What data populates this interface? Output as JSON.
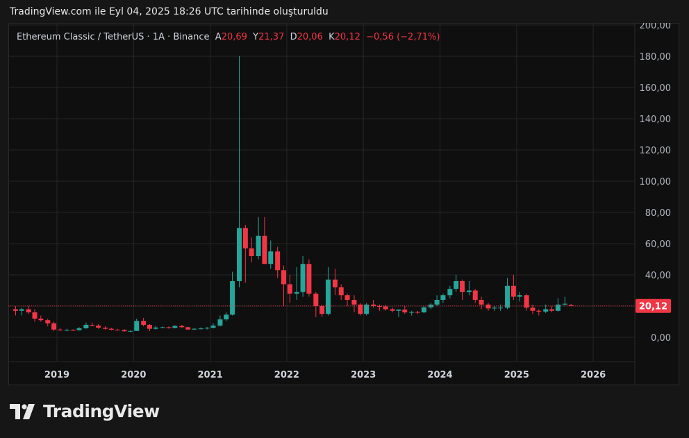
{
  "caption": "TradingView.com ile Eyl 04, 2025 18:26 UTC tarihinde oluşturuldu",
  "legend": {
    "symbol": "Ethereum Classic / TetherUS · 1A · Binance",
    "open_label": "A",
    "open": "20,69",
    "high_label": "Y",
    "high": "21,37",
    "low_label": "D",
    "low": "20,06",
    "close_label": "K",
    "close": "20,12",
    "change": "−0,56 (−2,71%)"
  },
  "brand": {
    "name": "TradingView",
    "icon": "tradingview-logo-icon"
  },
  "colors": {
    "up": "#26a69a",
    "down": "#f23645",
    "grid": "#262626",
    "text": "#b2b5be",
    "price_tag": "#f23645"
  },
  "chart_data": {
    "type": "candlestick",
    "interval": "1M",
    "ylim": [
      -10,
      200
    ],
    "y_ticks": [
      "0,00",
      "20,00",
      "40,00",
      "60,00",
      "80,00",
      "100,00",
      "120,00",
      "140,00",
      "160,00",
      "180,00",
      "200,00"
    ],
    "y_tick_values": [
      0,
      20,
      40,
      60,
      80,
      100,
      120,
      140,
      160,
      180,
      200
    ],
    "x_ticks": [
      "2019",
      "2020",
      "2021",
      "2022",
      "2023",
      "2024",
      "2025",
      "2026"
    ],
    "x_tick_values": [
      2019,
      2020,
      2021,
      2022,
      2023,
      2024,
      2025,
      2026
    ],
    "last_price": 20.12,
    "last_price_label": "20,12",
    "grid": true,
    "candles": [
      [
        2018.46,
        18,
        20,
        14,
        17
      ],
      [
        2018.54,
        17,
        19,
        14,
        18
      ],
      [
        2018.63,
        18,
        20,
        15,
        16
      ],
      [
        2018.71,
        16,
        18,
        10,
        12
      ],
      [
        2018.79,
        12,
        14,
        10,
        11
      ],
      [
        2018.88,
        11,
        12,
        7,
        9
      ],
      [
        2018.96,
        9,
        10,
        4,
        5
      ],
      [
        2019.04,
        5,
        6,
        4,
        4.5
      ],
      [
        2019.13,
        4.5,
        5.5,
        4,
        4.7
      ],
      [
        2019.21,
        4.7,
        5.2,
        4.2,
        4.6
      ],
      [
        2019.29,
        4.6,
        6.5,
        4.4,
        5.8
      ],
      [
        2019.38,
        5.8,
        9.5,
        5.5,
        8
      ],
      [
        2019.46,
        8,
        9.5,
        7,
        7.5
      ],
      [
        2019.54,
        7.5,
        8.5,
        5.5,
        6.2
      ],
      [
        2019.63,
        6.2,
        7,
        5,
        5.5
      ],
      [
        2019.71,
        5.5,
        6,
        4.5,
        4.9
      ],
      [
        2019.79,
        4.9,
        5.5,
        4.3,
        4.7
      ],
      [
        2019.88,
        4.7,
        5.2,
        3.6,
        3.9
      ],
      [
        2019.96,
        3.9,
        4.5,
        3.4,
        4.1
      ],
      [
        2020.04,
        4.1,
        12,
        4,
        10.5
      ],
      [
        2020.13,
        10.5,
        12.5,
        7,
        8
      ],
      [
        2020.21,
        8,
        8.5,
        4,
        5.5
      ],
      [
        2020.29,
        5.5,
        7.5,
        5,
        6.3
      ],
      [
        2020.38,
        6.3,
        7,
        5.8,
        6.5
      ],
      [
        2020.46,
        6.5,
        7,
        5.5,
        6
      ],
      [
        2020.54,
        6,
        7.7,
        5.8,
        7.3
      ],
      [
        2020.63,
        7.3,
        8,
        6,
        6.5
      ],
      [
        2020.71,
        6.5,
        6.8,
        4.8,
        5
      ],
      [
        2020.79,
        5,
        6,
        4.8,
        5.5
      ],
      [
        2020.88,
        5.5,
        6.5,
        5,
        5.7
      ],
      [
        2020.96,
        5.7,
        6.6,
        5,
        6.1
      ],
      [
        2021.04,
        6.1,
        9,
        5.8,
        7.5
      ],
      [
        2021.13,
        7.5,
        14,
        7,
        11.5
      ],
      [
        2021.21,
        11.5,
        16,
        10.5,
        14.5
      ],
      [
        2021.29,
        14.5,
        42,
        14,
        36
      ],
      [
        2021.38,
        36,
        180,
        32,
        70
      ],
      [
        2021.46,
        70,
        72,
        35,
        57
      ],
      [
        2021.54,
        57,
        64,
        48,
        52
      ],
      [
        2021.63,
        52,
        77,
        50,
        65
      ],
      [
        2021.71,
        65,
        77,
        47,
        47
      ],
      [
        2021.79,
        47,
        62,
        44,
        55
      ],
      [
        2021.88,
        55,
        58,
        38,
        43
      ],
      [
        2021.96,
        43,
        46,
        20,
        34
      ],
      [
        2022.04,
        34,
        40,
        22,
        28
      ],
      [
        2022.13,
        28,
        45,
        24,
        29
      ],
      [
        2022.21,
        29,
        52,
        26,
        47
      ],
      [
        2022.29,
        47,
        50,
        26,
        28
      ],
      [
        2022.38,
        28,
        29,
        13,
        20
      ],
      [
        2022.46,
        20,
        21,
        13,
        15
      ],
      [
        2022.54,
        15,
        45,
        14,
        37
      ],
      [
        2022.63,
        37,
        44,
        27,
        32
      ],
      [
        2022.71,
        32,
        34,
        24,
        27
      ],
      [
        2022.79,
        27,
        28,
        20,
        24
      ],
      [
        2022.88,
        24,
        27,
        16,
        21
      ],
      [
        2022.96,
        21,
        22,
        14,
        15
      ],
      [
        2023.04,
        15,
        22,
        14,
        21
      ],
      [
        2023.13,
        21,
        24,
        19,
        20
      ],
      [
        2023.21,
        20,
        21,
        17,
        19.8
      ],
      [
        2023.29,
        19.8,
        21,
        17,
        18
      ],
      [
        2023.38,
        18,
        19,
        16,
        17
      ],
      [
        2023.46,
        17,
        18,
        13,
        17.8
      ],
      [
        2023.54,
        17.8,
        20,
        15,
        16
      ],
      [
        2023.63,
        16,
        17,
        14,
        16.2
      ],
      [
        2023.71,
        16.2,
        17,
        15,
        16
      ],
      [
        2023.79,
        16,
        20,
        15.5,
        19.2
      ],
      [
        2023.88,
        19.2,
        22,
        18,
        21
      ],
      [
        2023.96,
        21,
        27,
        20,
        24
      ],
      [
        2024.04,
        24,
        28,
        22,
        27
      ],
      [
        2024.13,
        27,
        33,
        25,
        31
      ],
      [
        2024.21,
        31,
        40,
        29,
        36
      ],
      [
        2024.29,
        36,
        37,
        24,
        29
      ],
      [
        2024.38,
        29,
        36,
        27,
        30
      ],
      [
        2024.46,
        30,
        31,
        22,
        24
      ],
      [
        2024.54,
        24,
        26,
        18,
        21
      ],
      [
        2024.63,
        21,
        22,
        17,
        18.5
      ],
      [
        2024.71,
        18.5,
        20,
        17,
        19
      ],
      [
        2024.79,
        19,
        21,
        17,
        19
      ],
      [
        2024.88,
        19,
        38,
        18,
        33
      ],
      [
        2024.96,
        33,
        40,
        24,
        26
      ],
      [
        2025.04,
        26,
        29,
        23,
        27
      ],
      [
        2025.13,
        27,
        28,
        17,
        19
      ],
      [
        2025.21,
        19,
        21,
        15,
        17
      ],
      [
        2025.29,
        17,
        18,
        14,
        16.5
      ],
      [
        2025.38,
        16.5,
        21,
        15.5,
        18
      ],
      [
        2025.46,
        18,
        20,
        16,
        17
      ],
      [
        2025.54,
        17,
        25,
        16.5,
        21
      ],
      [
        2025.63,
        21,
        26,
        20,
        21.5
      ],
      [
        2025.71,
        20.69,
        21.37,
        20.06,
        20.12
      ]
    ]
  }
}
